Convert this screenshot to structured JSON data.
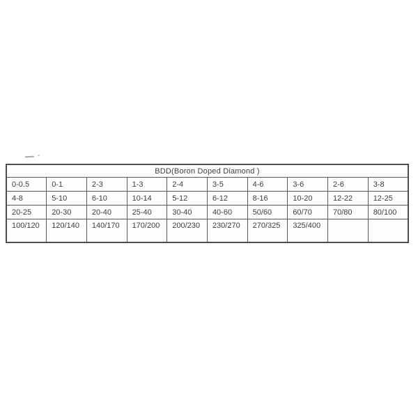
{
  "page": {
    "background": "#ffffff",
    "text_color": "#3c3c3c",
    "border_color": "#585858"
  },
  "table": {
    "title": "BDD(Boron Doped Diamond )",
    "columns": 10,
    "rows": [
      [
        "0-0.5",
        "0-1",
        "2-3",
        "1-3",
        "2-4",
        "3-5",
        "4-6",
        "3-6",
        "2-6",
        "3-8"
      ],
      [
        "4-8",
        "5-10",
        "6-10",
        "10-14",
        "5-12",
        "6-12",
        "8-16",
        "10-20",
        "12-22",
        "12-25"
      ],
      [
        "20-25",
        "20-30",
        "20-40",
        "25-40",
        "30-40",
        "40-60",
        "50/60",
        "60/70",
        "70/80",
        "80/100"
      ],
      [
        "100/120",
        "120/140",
        "140/170",
        "170/200",
        "200/230",
        "230/270",
        "270/325",
        "325/400",
        "",
        ""
      ]
    ]
  }
}
